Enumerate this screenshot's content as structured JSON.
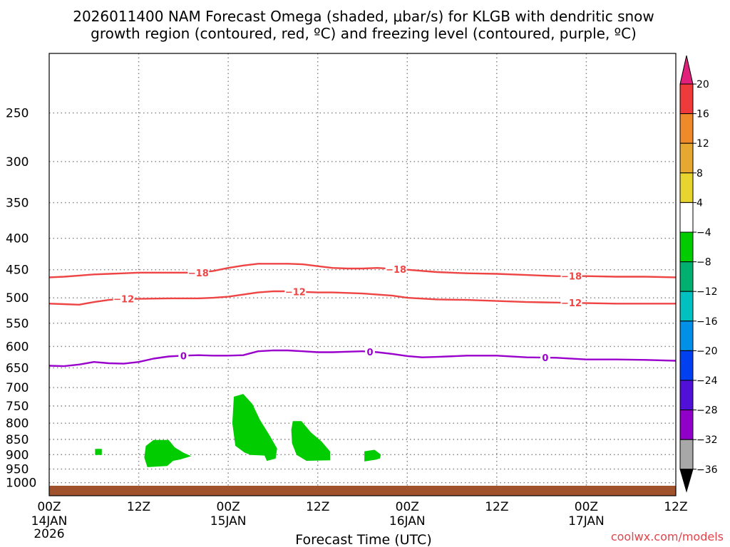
{
  "chart_data": {
    "type": "contour",
    "title_line1": "2026011400 NAM Forecast Omega (shaded, μbar/s) for KLGB with dendritic snow",
    "title_line2": "growth region (contoured, red, ºC) and freezing level (contoured, purple, ºC)",
    "xlabel": "Forecast Time (UTC)",
    "credit": "coolwx.com/models",
    "x_range_hours": [
      0,
      84
    ],
    "x_ticks": [
      {
        "h": 0,
        "l1": "00Z",
        "l2": "14JAN",
        "l3": "2026"
      },
      {
        "h": 12,
        "l1": "12Z",
        "l2": "",
        "l3": ""
      },
      {
        "h": 24,
        "l1": "00Z",
        "l2": "15JAN",
        "l3": ""
      },
      {
        "h": 36,
        "l1": "12Z",
        "l2": "",
        "l3": ""
      },
      {
        "h": 48,
        "l1": "00Z",
        "l2": "16JAN",
        "l3": ""
      },
      {
        "h": 60,
        "l1": "12Z",
        "l2": "",
        "l3": ""
      },
      {
        "h": 72,
        "l1": "00Z",
        "l2": "17JAN",
        "l3": ""
      },
      {
        "h": 84,
        "l1": "12Z",
        "l2": "",
        "l3": ""
      }
    ],
    "y_range_hpa": [
      200,
      1050
    ],
    "y_ticks": [
      250,
      300,
      350,
      400,
      450,
      500,
      550,
      600,
      650,
      700,
      750,
      800,
      850,
      900,
      950,
      1000
    ],
    "colorbar": {
      "levels": [
        {
          "label": "20",
          "color": "#ee3a3a"
        },
        {
          "label": "16",
          "color": "#ee8a2a"
        },
        {
          "label": "12",
          "color": "#e6a830"
        },
        {
          "label": "8",
          "color": "#e8d42e"
        },
        {
          "label": "4",
          "color": "#ffffff"
        },
        {
          "label": "−4",
          "color": "#00cc00"
        },
        {
          "label": "−8",
          "color": "#00b070"
        },
        {
          "label": "−12",
          "color": "#00c0c0"
        },
        {
          "label": "−16",
          "color": "#0090e8"
        },
        {
          "label": "−20",
          "color": "#0040f0"
        },
        {
          "label": "−24",
          "color": "#5010d8"
        },
        {
          "label": "−28",
          "color": "#9000c8"
        },
        {
          "label": "−32",
          "color": "#a8a8a8"
        },
        {
          "label": "−36",
          "color": "#000000"
        }
      ],
      "top_color": "#e0207a",
      "top_slot_color": "#ee3a3a",
      "bottom_slot_color": "#a8a8a8",
      "bottom_color": "#000000"
    },
    "colors": {
      "dgz": "#ee4444",
      "freezing": "#9900cc",
      "omega_fill": "#00cc00",
      "terrain": "#a0522d",
      "grid": "#808080"
    },
    "contours": [
      {
        "name": "dgz-minus18",
        "label": "−18",
        "color": "#ee4444",
        "hours": [
          0,
          2,
          4,
          6,
          8,
          10,
          12,
          16,
          20,
          22,
          24,
          26,
          28,
          30,
          32,
          34,
          36,
          38,
          40,
          42,
          44,
          48,
          52,
          56,
          60,
          64,
          68,
          72,
          76,
          80,
          84
        ],
        "hpa": [
          463,
          462,
          460,
          458,
          457,
          456,
          455,
          455,
          455,
          452,
          447,
          443,
          440,
          440,
          440,
          441,
          444,
          447,
          448,
          448,
          447,
          450,
          454,
          456,
          457,
          459,
          461,
          461,
          462,
          462,
          463
        ],
        "label_hours": [
          20,
          46.5,
          70
        ]
      },
      {
        "name": "dgz-minus12",
        "label": "−12",
        "color": "#ee4444",
        "hours": [
          0,
          2,
          4,
          6,
          8,
          10,
          12,
          16,
          20,
          22,
          24,
          26,
          28,
          30,
          32,
          34,
          36,
          38,
          40,
          42,
          44,
          46,
          48,
          52,
          56,
          60,
          64,
          68,
          72,
          76,
          80,
          84
        ],
        "hpa": [
          511,
          512,
          513,
          508,
          504,
          502,
          502,
          501,
          501,
          500,
          498,
          494,
          490,
          488,
          488,
          489,
          490,
          490,
          491,
          492,
          494,
          496,
          500,
          503,
          504,
          506,
          508,
          509,
          510,
          511,
          511,
          511
        ],
        "label_hours": [
          10,
          33,
          70
        ]
      },
      {
        "name": "freezing-level",
        "label": "0",
        "color": "#9900cc",
        "hours": [
          0,
          2,
          4,
          6,
          8,
          10,
          12,
          14,
          16,
          18,
          20,
          22,
          24,
          26,
          28,
          30,
          32,
          34,
          36,
          38,
          40,
          42,
          44,
          46,
          48,
          50,
          52,
          56,
          60,
          64,
          68,
          72,
          76,
          80,
          84
        ],
        "hpa": [
          645,
          646,
          642,
          636,
          639,
          640,
          636,
          628,
          623,
          621,
          620,
          621,
          621,
          620,
          611,
          609,
          609,
          611,
          613,
          613,
          612,
          611,
          613,
          617,
          622,
          625,
          624,
          621,
          621,
          625,
          626,
          630,
          630,
          631,
          633
        ],
        "label_hours": [
          18,
          43,
          66.5
        ]
      }
    ],
    "omega_regions": [
      {
        "name": "omega-blob-a",
        "value_range": "-4 to -8",
        "points": [
          [
            6.2,
            882
          ],
          [
            7.0,
            882
          ],
          [
            7.0,
            900
          ],
          [
            6.2,
            900
          ]
        ]
      },
      {
        "name": "omega-blob-b",
        "value_range": "-4 to -8",
        "points": [
          [
            13.0,
            872
          ],
          [
            14.0,
            853
          ],
          [
            16.0,
            853
          ],
          [
            16.8,
            877
          ],
          [
            18.0,
            895
          ],
          [
            18.9,
            905
          ],
          [
            17.6,
            915
          ],
          [
            16.6,
            920
          ],
          [
            15.8,
            938
          ],
          [
            13.2,
            942
          ],
          [
            12.8,
            910
          ]
        ]
      },
      {
        "name": "omega-blob-c",
        "value_range": "-4 to -8",
        "points": [
          [
            24.8,
            725
          ],
          [
            26.0,
            718
          ],
          [
            27.2,
            745
          ],
          [
            28.2,
            790
          ],
          [
            29.5,
            838
          ],
          [
            30.5,
            880
          ],
          [
            30.3,
            913
          ],
          [
            29.2,
            920
          ],
          [
            28.9,
            902
          ],
          [
            27.0,
            900
          ],
          [
            26.2,
            892
          ],
          [
            25.0,
            870
          ],
          [
            24.6,
            800
          ]
        ]
      },
      {
        "name": "omega-blob-d",
        "value_range": "-4 to -8",
        "points": [
          [
            32.7,
            795
          ],
          [
            33.8,
            795
          ],
          [
            35.0,
            828
          ],
          [
            36.5,
            858
          ],
          [
            37.6,
            890
          ],
          [
            37.6,
            918
          ],
          [
            34.5,
            920
          ],
          [
            33.2,
            900
          ],
          [
            32.6,
            862
          ],
          [
            32.5,
            820
          ]
        ]
      },
      {
        "name": "omega-blob-e",
        "value_range": "-4 to -8",
        "points": [
          [
            42.3,
            890
          ],
          [
            43.6,
            885
          ],
          [
            44.4,
            900
          ],
          [
            44.3,
            912
          ],
          [
            43.8,
            916
          ],
          [
            42.3,
            922
          ]
        ]
      }
    ]
  }
}
